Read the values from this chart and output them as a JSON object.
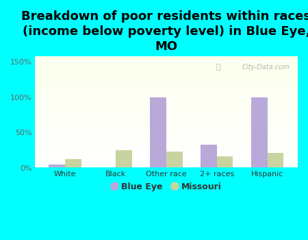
{
  "title": "Breakdown of poor residents within races\n(income below poverty level) in Blue Eye,\nMO",
  "categories": [
    "White",
    "Black",
    "Other race",
    "2+ races",
    "Hispanic"
  ],
  "blue_eye_values": [
    5,
    0,
    100,
    33,
    100
  ],
  "missouri_values": [
    12,
    25,
    23,
    16,
    21
  ],
  "blue_eye_color": "#b8a9d9",
  "missouri_color": "#c8d4a0",
  "background_color": "#00ffff",
  "yticks": [
    0,
    50,
    100,
    150
  ],
  "ytick_labels": [
    "0%",
    "50%",
    "100%",
    "150%"
  ],
  "ylim": [
    0,
    158
  ],
  "title_fontsize": 13,
  "legend_labels": [
    "Blue Eye",
    "Missouri"
  ],
  "bar_width": 0.32,
  "watermark": "City-Data.com"
}
